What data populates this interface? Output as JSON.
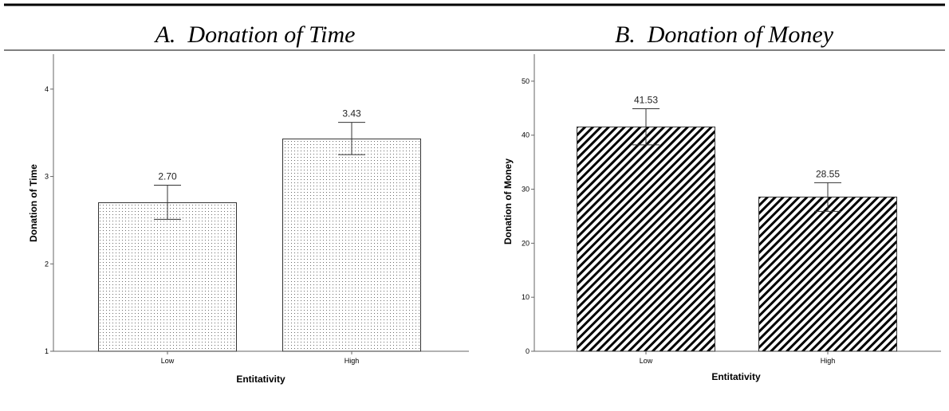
{
  "chart_data": [
    {
      "type": "bar",
      "panel_title": "A.  Donation of Time",
      "categories": [
        "Low",
        "High"
      ],
      "values": [
        2.7,
        3.43
      ],
      "data_labels": [
        "2.70",
        "3.43"
      ],
      "error_bars": [
        [
          2.51,
          2.9
        ],
        [
          3.25,
          3.62
        ]
      ],
      "xlabel": "Entitativity",
      "ylabel": "Donation of Time",
      "ylim": [
        1,
        4.4
      ],
      "yticks": [
        1,
        2,
        3,
        4
      ],
      "grid": false,
      "fill_pattern": "dots"
    },
    {
      "type": "bar",
      "panel_title": "B.  Donation of Money",
      "categories": [
        "Low",
        "High"
      ],
      "values": [
        41.53,
        28.55
      ],
      "data_labels": [
        "41.53",
        "28.55"
      ],
      "error_bars": [
        [
          38.2,
          44.9
        ],
        [
          25.9,
          31.2
        ]
      ],
      "xlabel": "Entitativity",
      "ylabel": "Donation of Money",
      "ylim": [
        0,
        55
      ],
      "yticks": [
        0,
        10,
        20,
        30,
        40,
        50
      ],
      "grid": false,
      "fill_pattern": "diagonal-stripes"
    }
  ],
  "colors": {
    "bar_outline": "#333333",
    "pattern": "#000000",
    "axis": "#666666"
  }
}
